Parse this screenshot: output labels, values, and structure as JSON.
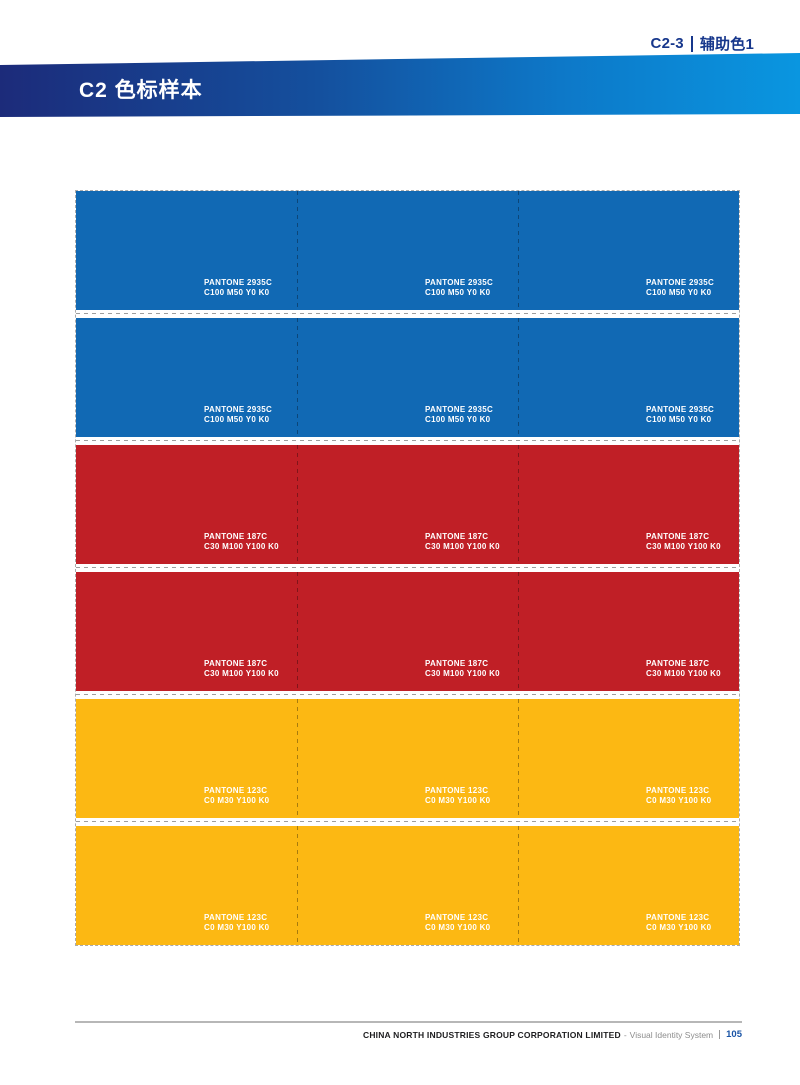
{
  "corner": {
    "code": "C2-3",
    "label": "辅助色1"
  },
  "header": {
    "title": "C2 色标样本"
  },
  "colors": {
    "header_gradient_start": "#1c2b7a",
    "header_gradient_end": "#0a96e0",
    "corner_text_blue": "#17378c",
    "page_number_blue": "#1a54a6",
    "swatch_blue": "#1169b4",
    "swatch_red": "#c01f26",
    "swatch_yellow": "#fcb813"
  },
  "swatches": {
    "columns": 3,
    "rows": [
      {
        "pantone": "PANTONE 2935C",
        "cmyk": "C100 M50 Y0 K0",
        "color": "#1169b4"
      },
      {
        "pantone": "PANTONE 2935C",
        "cmyk": "C100 M50 Y0 K0",
        "color": "#1169b4"
      },
      {
        "pantone": "PANTONE 187C",
        "cmyk": "C30 M100 Y100 K0",
        "color": "#c01f26"
      },
      {
        "pantone": "PANTONE 187C",
        "cmyk": "C30 M100 Y100 K0",
        "color": "#c01f26"
      },
      {
        "pantone": "PANTONE 123C",
        "cmyk": "C0 M30 Y100 K0",
        "color": "#fcb813"
      },
      {
        "pantone": "PANTONE 123C",
        "cmyk": "C0 M30 Y100 K0",
        "color": "#fcb813"
      }
    ]
  },
  "footer": {
    "company": "CHINA NORTH INDUSTRIES GROUP CORPORATION LIMITED",
    "dash": "-",
    "system": "Visual Identity System",
    "page_number": "105"
  }
}
